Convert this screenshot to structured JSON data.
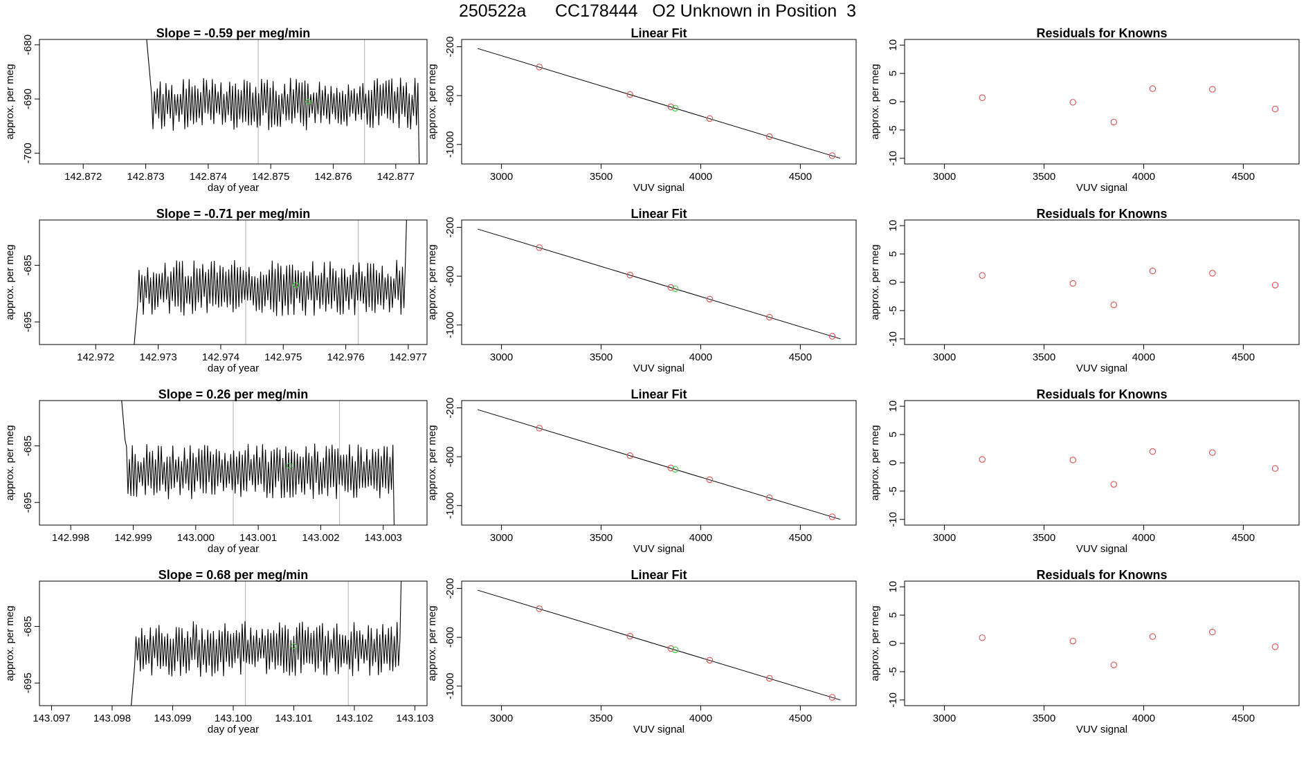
{
  "page_title": "250522a      CC178444   O2 Unknown in Position  3",
  "colors": {
    "trace": "#000000",
    "knowns": "#e05050",
    "unknown": "#40d040",
    "marker_line": "#bdbdbd",
    "frame": "#000000"
  },
  "chart_data": [
    {
      "type": "line",
      "panel": "time-series",
      "row": 1,
      "title": "Slope =  -0.59  per meg/min",
      "xlabel": "day of year",
      "ylabel": "approx. per meg",
      "xlim": [
        142.8713,
        142.8775
      ],
      "ylim": [
        -702,
        -679
      ],
      "xticks": [
        "142.872",
        "142.873",
        "142.874",
        "142.875",
        "142.876",
        "142.877"
      ],
      "yticks": [
        "-680",
        "-690",
        "-700"
      ],
      "x_start": 142.873,
      "x_end": 142.8774,
      "baseline": -691,
      "amplitude": 4.5,
      "vlines": [
        142.8748,
        142.8765
      ],
      "unknown_point": [
        142.8756,
        -690.5
      ]
    },
    {
      "type": "scatter",
      "panel": "linear-fit",
      "row": 1,
      "title": "Linear Fit",
      "xlabel": "VUV signal",
      "ylabel": "approx. per meg",
      "xlim": [
        2800,
        4780
      ],
      "ylim": [
        -1160,
        -140
      ],
      "xticks": [
        "3000",
        "3500",
        "4000",
        "4500"
      ],
      "yticks": [
        "-200",
        "-600",
        "-1000"
      ],
      "fit_line": [
        [
          2880,
          -214
        ],
        [
          4700,
          -1113
        ]
      ],
      "knowns": [
        [
          3190,
          -366
        ],
        [
          3645,
          -591
        ],
        [
          3850,
          -692
        ],
        [
          4045,
          -788
        ],
        [
          4345,
          -936
        ],
        [
          4660,
          -1092
        ]
      ],
      "unknown": [
        3872,
        -703
      ]
    },
    {
      "type": "scatter",
      "panel": "residuals",
      "row": 1,
      "title": "Residuals for Knowns",
      "xlabel": "VUV signal",
      "ylabel": "approx. per meg",
      "xlim": [
        2800,
        4780
      ],
      "ylim": [
        -11,
        11
      ],
      "xticks": [
        "3000",
        "3500",
        "4000",
        "4500"
      ],
      "yticks": [
        "10",
        "5",
        "0",
        "-5",
        "-10"
      ],
      "knowns": [
        [
          3190,
          0.7
        ],
        [
          3645,
          -0.1
        ],
        [
          3850,
          -3.6
        ],
        [
          4045,
          2.3
        ],
        [
          4345,
          2.2
        ],
        [
          4660,
          -1.3
        ]
      ]
    },
    {
      "type": "line",
      "panel": "time-series",
      "row": 2,
      "title": "Slope =  -0.71  per meg/min",
      "xlabel": "day of year",
      "ylabel": "approx. per meg",
      "xlim": [
        142.9711,
        142.9773
      ],
      "ylim": [
        -699,
        -677
      ],
      "xticks": [
        "142.972",
        "142.973",
        "142.974",
        "142.975",
        "142.976",
        "142.977"
      ],
      "yticks": [
        "-685",
        "-695"
      ],
      "x_start": 142.9726,
      "x_end": 142.977,
      "baseline": -689,
      "amplitude": 4.5,
      "vlines": [
        142.9744,
        142.9762
      ],
      "unknown_point": [
        142.9752,
        -688.5
      ]
    },
    {
      "type": "scatter",
      "panel": "linear-fit",
      "row": 2,
      "title": "Linear Fit",
      "xlabel": "VUV signal",
      "ylabel": "approx. per meg",
      "xlim": [
        2800,
        4780
      ],
      "ylim": [
        -1160,
        -140
      ],
      "xticks": [
        "3000",
        "3500",
        "4000",
        "4500"
      ],
      "yticks": [
        "-200",
        "-600",
        "-1000"
      ],
      "fit_line": [
        [
          2880,
          -214
        ],
        [
          4700,
          -1113
        ]
      ],
      "knowns": [
        [
          3190,
          -366
        ],
        [
          3645,
          -591
        ],
        [
          3850,
          -692
        ],
        [
          4045,
          -788
        ],
        [
          4345,
          -936
        ],
        [
          4660,
          -1092
        ]
      ],
      "unknown": [
        3872,
        -703
      ]
    },
    {
      "type": "scatter",
      "panel": "residuals",
      "row": 2,
      "title": "Residuals for Knowns",
      "xlabel": "VUV signal",
      "ylabel": "approx. per meg",
      "xlim": [
        2800,
        4780
      ],
      "ylim": [
        -11,
        11
      ],
      "xticks": [
        "3000",
        "3500",
        "4000",
        "4500"
      ],
      "yticks": [
        "10",
        "5",
        "0",
        "-5",
        "-10"
      ],
      "knowns": [
        [
          3190,
          1.2
        ],
        [
          3645,
          -0.2
        ],
        [
          3850,
          -4.0
        ],
        [
          4045,
          2.0
        ],
        [
          4345,
          1.6
        ],
        [
          4660,
          -0.5
        ]
      ]
    },
    {
      "type": "line",
      "panel": "time-series",
      "row": 3,
      "title": "Slope =  0.26  per meg/min",
      "xlabel": "day of year",
      "ylabel": "approx. per meg",
      "xlim": [
        142.9975,
        143.0037
      ],
      "ylim": [
        -699,
        -677
      ],
      "xticks": [
        "142.998",
        "142.999",
        "143.000",
        "143.001",
        "143.002",
        "143.003"
      ],
      "yticks": [
        "-685",
        "-695"
      ],
      "x_start": 142.9988,
      "x_end": 143.0032,
      "baseline": -689.5,
      "amplitude": 4.5,
      "vlines": [
        143.0006,
        143.0023
      ],
      "unknown_point": [
        143.0015,
        -688.5
      ]
    },
    {
      "type": "scatter",
      "panel": "linear-fit",
      "row": 3,
      "title": "Linear Fit",
      "xlabel": "VUV signal",
      "ylabel": "approx. per meg",
      "xlim": [
        2800,
        4780
      ],
      "ylim": [
        -1160,
        -140
      ],
      "xticks": [
        "3000",
        "3500",
        "4000",
        "4500"
      ],
      "yticks": [
        "-200",
        "-600",
        "-1000"
      ],
      "fit_line": [
        [
          2880,
          -214
        ],
        [
          4700,
          -1113
        ]
      ],
      "knowns": [
        [
          3190,
          -366
        ],
        [
          3645,
          -591
        ],
        [
          3850,
          -692
        ],
        [
          4045,
          -788
        ],
        [
          4345,
          -936
        ],
        [
          4660,
          -1092
        ]
      ],
      "unknown": [
        3872,
        -703
      ]
    },
    {
      "type": "scatter",
      "panel": "residuals",
      "row": 3,
      "title": "Residuals for Knowns",
      "xlabel": "VUV signal",
      "ylabel": "approx. per meg",
      "xlim": [
        2800,
        4780
      ],
      "ylim": [
        -11,
        11
      ],
      "xticks": [
        "3000",
        "3500",
        "4000",
        "4500"
      ],
      "yticks": [
        "10",
        "5",
        "0",
        "-5",
        "-10"
      ],
      "knowns": [
        [
          3190,
          0.6
        ],
        [
          3645,
          0.5
        ],
        [
          3850,
          -3.8
        ],
        [
          4045,
          2.0
        ],
        [
          4345,
          1.8
        ],
        [
          4660,
          -1.0
        ]
      ]
    },
    {
      "type": "line",
      "panel": "time-series",
      "row": 4,
      "title": "Slope =  0.68  per meg/min",
      "xlabel": "day of year",
      "ylabel": "approx. per meg",
      "xlim": [
        143.0968,
        143.1032
      ],
      "ylim": [
        -699,
        -677
      ],
      "xticks": [
        "143.097",
        "143.098",
        "143.099",
        "143.100",
        "143.101",
        "143.102",
        "143.103"
      ],
      "yticks": [
        "-685",
        "-695"
      ],
      "x_start": 143.0983,
      "x_end": 143.1028,
      "baseline": -689,
      "amplitude": 4.5,
      "vlines": [
        143.1002,
        143.1019
      ],
      "unknown_point": [
        143.101,
        -688.5
      ]
    },
    {
      "type": "scatter",
      "panel": "linear-fit",
      "row": 4,
      "title": "Linear Fit",
      "xlabel": "VUV signal",
      "ylabel": "approx. per meg",
      "xlim": [
        2800,
        4780
      ],
      "ylim": [
        -1160,
        -140
      ],
      "xticks": [
        "3000",
        "3500",
        "4000",
        "4500"
      ],
      "yticks": [
        "-200",
        "-600",
        "-1000"
      ],
      "fit_line": [
        [
          2880,
          -214
        ],
        [
          4700,
          -1113
        ]
      ],
      "knowns": [
        [
          3190,
          -366
        ],
        [
          3645,
          -591
        ],
        [
          3850,
          -692
        ],
        [
          4045,
          -788
        ],
        [
          4345,
          -936
        ],
        [
          4660,
          -1092
        ]
      ],
      "unknown": [
        3872,
        -703
      ]
    },
    {
      "type": "scatter",
      "panel": "residuals",
      "row": 4,
      "title": "Residuals for Knowns",
      "xlabel": "VUV signal",
      "ylabel": "approx. per meg",
      "xlim": [
        2800,
        4780
      ],
      "ylim": [
        -11,
        11
      ],
      "xticks": [
        "3000",
        "3500",
        "4000",
        "4500"
      ],
      "yticks": [
        "10",
        "5",
        "0",
        "-5",
        "-10"
      ],
      "knowns": [
        [
          3190,
          1.0
        ],
        [
          3645,
          0.4
        ],
        [
          3850,
          -3.8
        ],
        [
          4045,
          1.2
        ],
        [
          4345,
          2.0
        ],
        [
          4660,
          -0.6
        ]
      ]
    }
  ]
}
